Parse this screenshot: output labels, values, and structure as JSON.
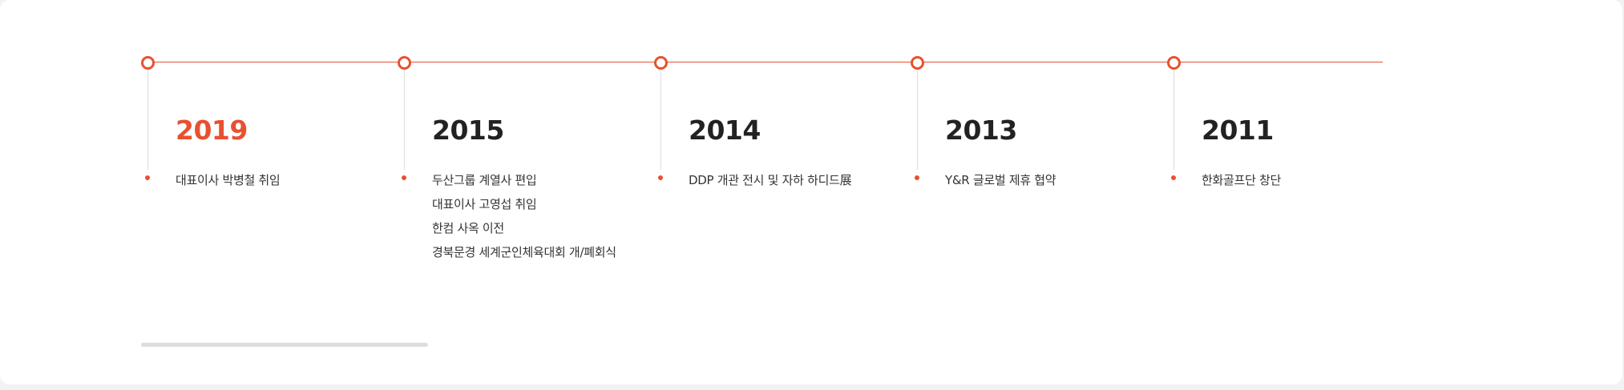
{
  "timeline": {
    "accent_color": "#e8512f",
    "entries": [
      {
        "year": "2019",
        "active": true,
        "events": [
          "대표이사 박병철 취임"
        ]
      },
      {
        "year": "2015",
        "active": false,
        "events": [
          "두산그룹 계열사 편입",
          "대표이사 고영섭 취임",
          "한컴 사옥 이전",
          "경북문경 세계군인체육대회 개/폐회식"
        ]
      },
      {
        "year": "2014",
        "active": false,
        "events": [
          "DDP 개관 전시 및 자하 하디드展"
        ]
      },
      {
        "year": "2013",
        "active": false,
        "events": [
          "Y&R 글로벌 제휴 협약"
        ]
      },
      {
        "year": "2011",
        "active": false,
        "events": [
          "한화골프단 창단"
        ]
      }
    ]
  },
  "scrollbar": {
    "position_fraction": 0
  }
}
